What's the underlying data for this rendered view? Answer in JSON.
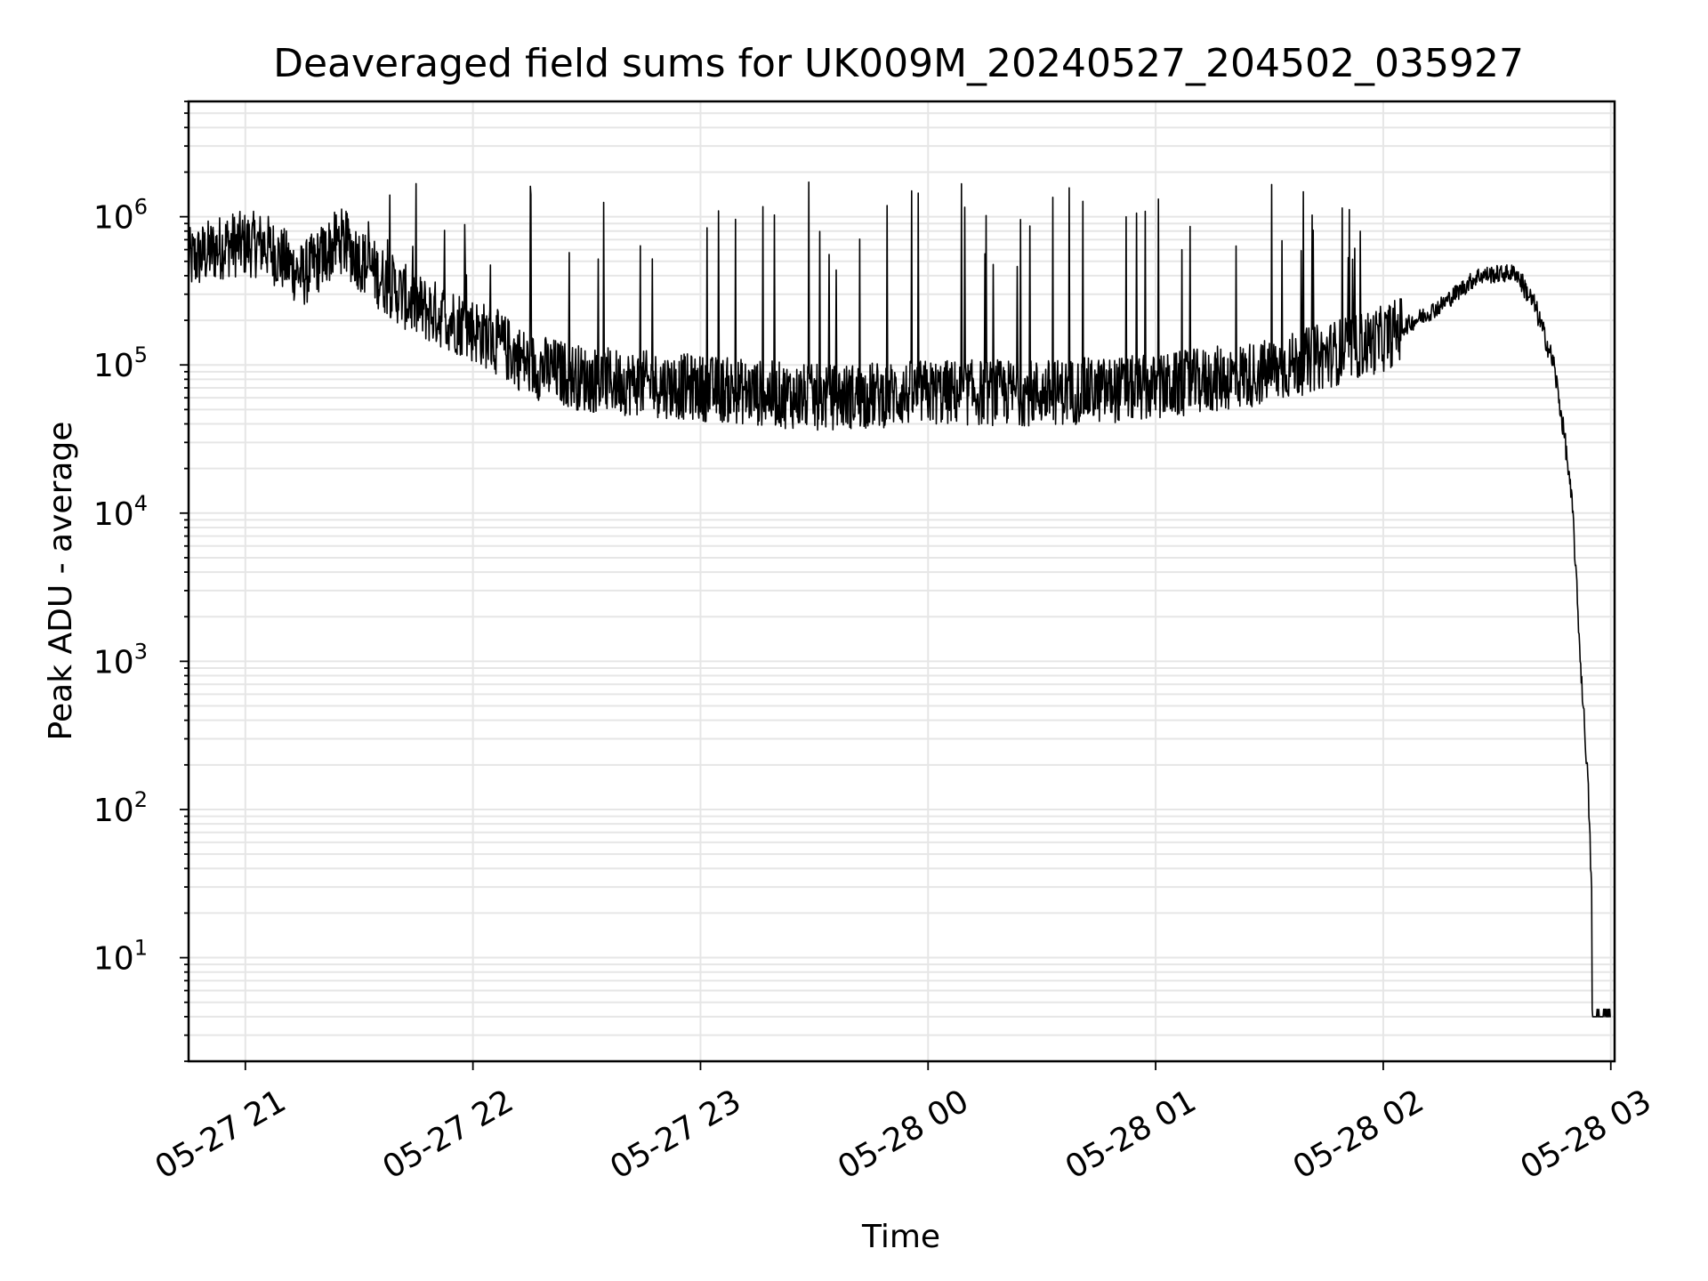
{
  "chart_data": {
    "type": "line",
    "title": "Deaveraged field sums for UK009M_20240527_204502_035927",
    "xlabel": "Time",
    "ylabel": "Peak ADU - average",
    "yscale": "log",
    "ylim": [
      2,
      6000000
    ],
    "xlim": [
      "2024-05-27 20:45:02",
      "2024-05-28 03:01:00"
    ],
    "x_ticks": [
      "05-27 21",
      "05-27 22",
      "05-27 23",
      "05-28 00",
      "05-28 01",
      "05-28 02",
      "05-28 03"
    ],
    "y_ticks": [
      {
        "base": "10",
        "exp": "1"
      },
      {
        "base": "10",
        "exp": "2"
      },
      {
        "base": "10",
        "exp": "3"
      },
      {
        "base": "10",
        "exp": "4"
      },
      {
        "base": "10",
        "exp": "5"
      },
      {
        "base": "10",
        "exp": "6"
      }
    ],
    "grid": true,
    "line_color": "#000000",
    "grid_color": "#e6e6e6",
    "series": [
      {
        "x": [
          "2024-05-27 20:45",
          "2024-05-27 20:55",
          "2024-05-27 21:05",
          "2024-05-27 21:15",
          "2024-05-27 21:25",
          "2024-05-27 21:35",
          "2024-05-27 21:45",
          "2024-05-27 21:55",
          "2024-05-27 22:05",
          "2024-05-27 22:15",
          "2024-05-27 22:30",
          "2024-05-27 23:00",
          "2024-05-27 23:30",
          "2024-05-28 00:00",
          "2024-05-28 00:30",
          "2024-05-28 01:00",
          "2024-05-28 01:30",
          "2024-05-28 02:00",
          "2024-05-28 02:15",
          "2024-05-28 02:25",
          "2024-05-28 02:35",
          "2024-05-28 02:40",
          "2024-05-28 02:45",
          "2024-05-28 02:48",
          "2024-05-28 02:50",
          "2024-05-28 02:52",
          "2024-05-28 02:54",
          "2024-05-28 02:56",
          "2024-05-28 02:58",
          "2024-05-28 03:00"
        ],
        "values": [
          500000,
          650000,
          650000,
          400000,
          700000,
          400000,
          250000,
          200000,
          150000,
          100000,
          80000,
          70000,
          60000,
          65000,
          65000,
          70000,
          90000,
          150000,
          250000,
          400000,
          420000,
          250000,
          100000,
          30000,
          10000,
          1000,
          150,
          4,
          4,
          4
        ]
      }
    ]
  }
}
